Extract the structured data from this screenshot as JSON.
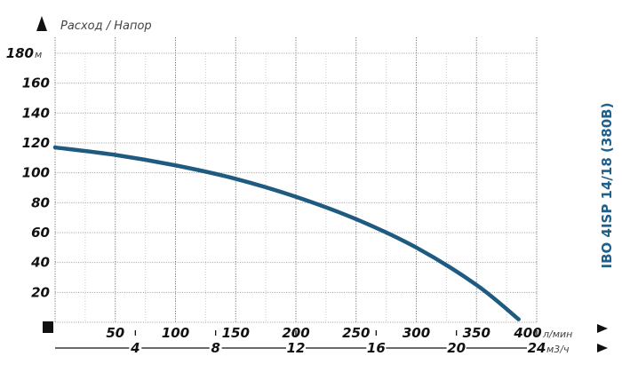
{
  "chart_data": {
    "type": "line",
    "title": "Расход / Напор",
    "side_title": "IBO 4ISP 14/18 (380B)",
    "ylabel_unit": "м",
    "xlabel_unit": "л/мин",
    "x2label_unit": "м3/ч",
    "xlim": [
      0,
      400
    ],
    "ylim": [
      0,
      180
    ],
    "x_ticks": [
      50,
      100,
      150,
      200,
      250,
      300,
      350,
      400
    ],
    "x_tick_labels": [
      "50",
      "100",
      "150",
      "200",
      "250",
      "300",
      "350",
      "400"
    ],
    "y_ticks": [
      20,
      40,
      60,
      80,
      100,
      120,
      140,
      160,
      180
    ],
    "y_tick_labels": [
      "20",
      "40",
      "60",
      "80",
      "100",
      "120",
      "140",
      "160",
      "180"
    ],
    "x2_ticks": [
      4,
      8,
      12,
      16,
      20,
      24
    ],
    "x2_tick_labels": [
      "4",
      "8",
      "12",
      "16",
      "20",
      "24"
    ],
    "grid": true,
    "series": [
      {
        "x": [
          0,
          50,
          100,
          150,
          200,
          250,
          300,
          350,
          385
        ],
        "y": [
          117,
          112,
          105,
          96,
          84,
          69,
          50,
          25,
          2
        ],
        "color": "#1f5a80"
      }
    ]
  }
}
